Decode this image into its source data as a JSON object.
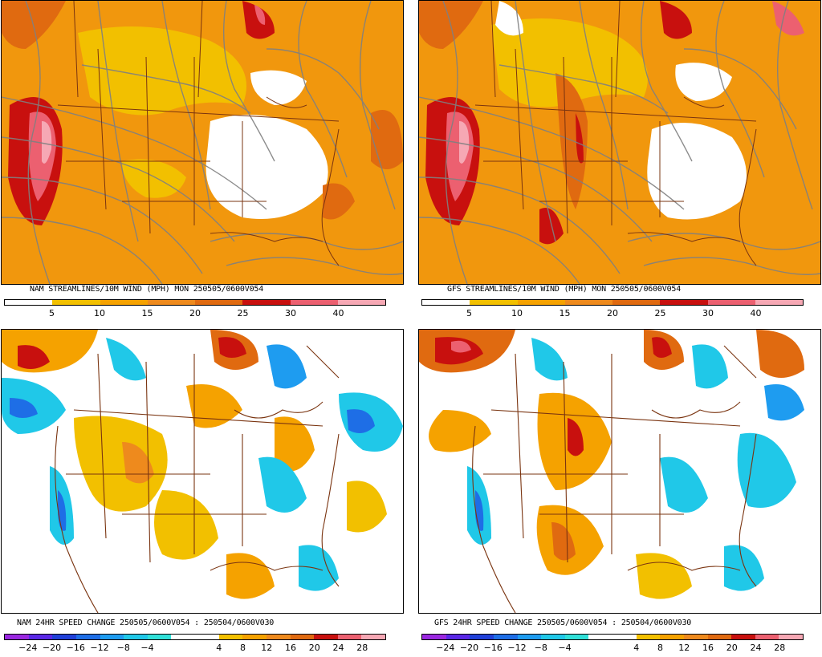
{
  "panels": [
    {
      "id": "nam-wind",
      "caption": "NAM STREAMLINES/10M WIND (MPH)  MON 250505/0600V054",
      "scale": {
        "colors": [
          "#ffffff",
          "#ffffff",
          "#f2c000",
          "#f2c000",
          "#f5a200",
          "#f5a200",
          "#ee8a1d",
          "#ee8a1d",
          "#e06a10",
          "#e06a10",
          "#c8100e",
          "#c8100e",
          "#ec6070",
          "#ec6070",
          "#f6a8b4",
          "#f6a8b4"
        ],
        "ticks": [
          "5",
          "10",
          "15",
          "20",
          "25",
          "30",
          "40"
        ]
      }
    },
    {
      "id": "gfs-wind",
      "caption": "GFS STREAMLINES/10M WIND (MPH)  MON 250505/0600V054",
      "scale": {
        "colors": [
          "#ffffff",
          "#ffffff",
          "#f2c000",
          "#f2c000",
          "#f5a200",
          "#f5a200",
          "#ee8a1d",
          "#ee8a1d",
          "#e06a10",
          "#e06a10",
          "#c8100e",
          "#c8100e",
          "#ec6070",
          "#ec6070",
          "#f6a8b4",
          "#f6a8b4"
        ],
        "ticks": [
          "5",
          "10",
          "15",
          "20",
          "25",
          "30",
          "40"
        ]
      }
    },
    {
      "id": "nam-change",
      "caption": "NAM 24HR SPEED CHANGE 250505/0600V054 : 250504/0600V030",
      "scale": {
        "colors": [
          "#9a28e0",
          "#5a28e6",
          "#2040d8",
          "#1e6ee6",
          "#1e9cf0",
          "#20c8e8",
          "#30e0d8",
          "#ffffff",
          "#ffffff",
          "#f2c000",
          "#f5a200",
          "#ee8a1d",
          "#e06a10",
          "#c8100e",
          "#ec6070",
          "#f6a8b4"
        ],
        "ticks": [
          "−24",
          "−20",
          "−16",
          "−12",
          "−8",
          "−4",
          "4",
          "8",
          "12",
          "16",
          "20",
          "24",
          "28"
        ]
      }
    },
    {
      "id": "gfs-change",
      "caption": "GFS 24HR SPEED CHANGE 250505/0600V054 : 250504/0600V030",
      "scale": {
        "colors": [
          "#9a28e0",
          "#5a28e6",
          "#2040d8",
          "#1e6ee6",
          "#1e9cf0",
          "#20c8e8",
          "#30e0d8",
          "#ffffff",
          "#ffffff",
          "#f2c000",
          "#f5a200",
          "#ee8a1d",
          "#e06a10",
          "#c8100e",
          "#ec6070",
          "#f6a8b4"
        ],
        "ticks": [
          "−24",
          "−20",
          "−16",
          "−12",
          "−8",
          "−4",
          "4",
          "8",
          "12",
          "16",
          "20",
          "24",
          "28"
        ]
      }
    }
  ]
}
